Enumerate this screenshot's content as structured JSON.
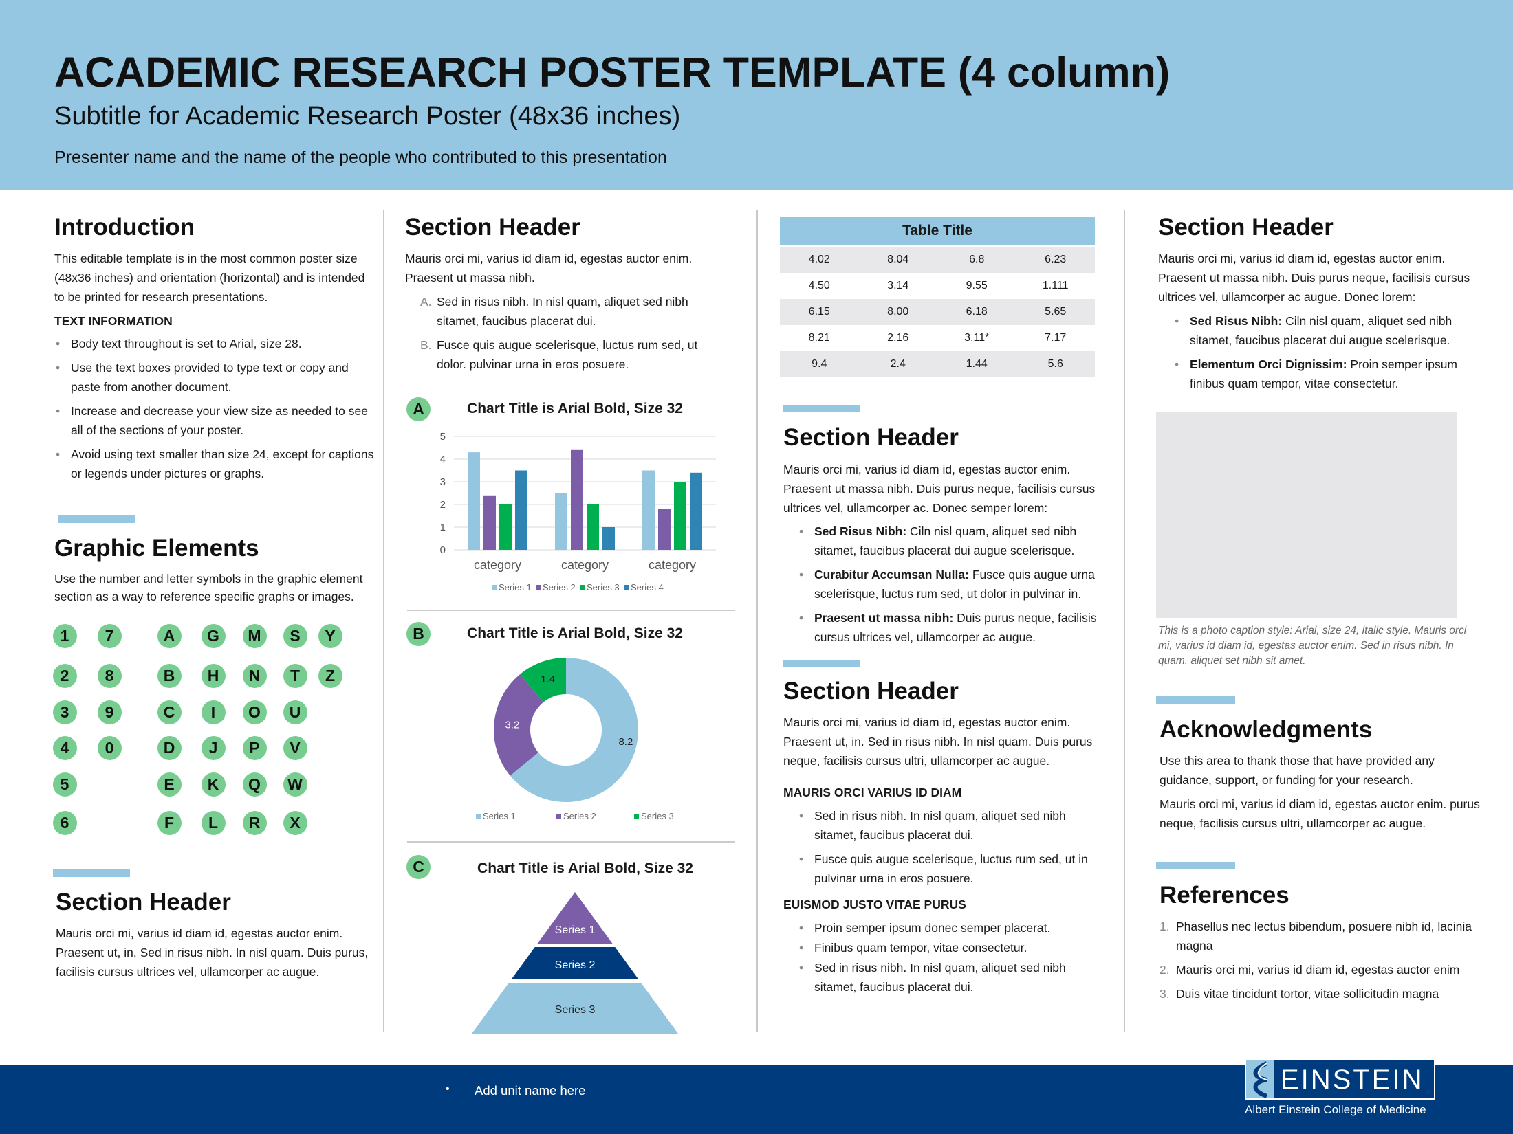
{
  "header": {
    "title": "ACADEMIC RESEARCH POSTER TEMPLATE (4 column)",
    "subtitle": "Subtitle for Academic Research Poster (48x36 inches)",
    "presenters": "Presenter name and the name of the people who contributed to this presentation"
  },
  "col1": {
    "intro_title": "Introduction",
    "intro_text": "This editable template is in the most common poster size (48x36 inches) and orientation (horizontal) and is intended to be printed for research presentations.",
    "text_info_title": "TEXT INFORMATION",
    "bullets": [
      "Body text throughout is set to Arial, size 28.",
      "Use the text boxes provided to type text or copy and paste from another document.",
      "Increase and decrease your view size as needed to see all of the sections of your poster.",
      "Avoid using text smaller than size 24, except for captions or legends under pictures or graphs."
    ],
    "graphic_title": "Graphic Elements",
    "graphic_text": "Use the number and letter symbols in the graphic element section as a way to reference specific graphs or images.",
    "symbols": [
      [
        "1",
        "7",
        "A",
        "G",
        "M",
        "S",
        "Y"
      ],
      [
        "2",
        "8",
        "B",
        "H",
        "N",
        "T",
        "Z"
      ],
      [
        "3",
        "9",
        "C",
        "I",
        "O",
        "U",
        ""
      ],
      [
        "4",
        "0",
        "D",
        "J",
        "P",
        "V",
        ""
      ],
      [
        "5",
        "",
        "E",
        "K",
        "Q",
        "W",
        ""
      ],
      [
        "6",
        "",
        "F",
        "L",
        "R",
        "X",
        ""
      ]
    ],
    "section_title": "Section Header",
    "section_text": "Mauris orci mi, varius id diam id, egestas auctor enim. Praesent ut, in. Sed in risus nibh. In nisl quam. Duis purus, facilisis cursus ultrices vel, ullamcorper ac augue."
  },
  "col2": {
    "section_title": "Section Header",
    "section_text": "Mauris orci mi, varius id diam id, egestas auctor enim. Praesent ut massa nibh.",
    "list": [
      {
        "marker": "A.",
        "text": "Sed in risus nibh. In nisl quam, aliquet sed nibh sitamet, faucibus placerat dui."
      },
      {
        "marker": "B.",
        "text": "Fusce quis augue scelerisque, luctus rum sed, ut dolor. pulvinar urna in eros posuere."
      }
    ],
    "badges": [
      "A",
      "B",
      "C"
    ]
  },
  "chart_data": [
    {
      "type": "bar",
      "title": "Chart Title is Arial Bold, Size 32",
      "categories": [
        "category",
        "category",
        "category"
      ],
      "ylim": [
        0,
        5
      ],
      "yticks": [
        "0",
        "1",
        "2",
        "3",
        "4",
        "5"
      ],
      "grid": true,
      "legend": "bottom",
      "series": [
        {
          "name": "Series 1",
          "values": [
            4.3,
            2.5,
            3.5
          ],
          "color": "#95c6e0"
        },
        {
          "name": "Series 2",
          "values": [
            2.4,
            4.4,
            1.8
          ],
          "color": "#7b5ea7"
        },
        {
          "name": "Series 3",
          "values": [
            2,
            2,
            3
          ],
          "color": "#00b050"
        },
        {
          "name": "Series 4",
          "values": [
            3.5,
            1,
            3.4
          ],
          "color": "#2e84b2"
        }
      ]
    },
    {
      "type": "pie",
      "donut": true,
      "title": "Chart Title is Arial Bold, Size 32",
      "legend": "bottom",
      "slices": [
        {
          "name": "Series 1",
          "value": 8.2,
          "label": "8.2",
          "color": "#95c6e0"
        },
        {
          "name": "Series 2",
          "value": 3.2,
          "label": "3.2",
          "color": "#7b5ea7"
        },
        {
          "name": "Series 3",
          "value": 1.4,
          "label": "1.4",
          "color": "#00b050"
        }
      ]
    },
    {
      "type": "pyramid",
      "title": "Chart Title is Arial Bold, Size 32",
      "tiers": [
        {
          "name": "Series 1",
          "color": "#7b5ea7"
        },
        {
          "name": "Series 2",
          "color": "#003b7d"
        },
        {
          "name": "Series 3",
          "color": "#95c6e0"
        }
      ]
    }
  ],
  "col3": {
    "table": {
      "title": "Table Title",
      "rows": [
        [
          "4.02",
          "8.04",
          "6.8",
          "6.23"
        ],
        [
          "4.50",
          "3.14",
          "9.55",
          "1.111"
        ],
        [
          "6.15",
          "8.00",
          "6.18",
          "5.65"
        ],
        [
          "8.21",
          "2.16",
          "3.11*",
          "7.17"
        ],
        [
          "9.4",
          "2.4",
          "1.44",
          "5.6"
        ]
      ]
    },
    "s1_title": "Section Header",
    "s1_text": "Mauris orci mi, varius id diam id, egestas auctor enim. Praesent ut massa nibh. Duis purus neque, facilisis cursus ultrices vel, ullamcorper ac. Donec semper lorem:",
    "s1_bullets": [
      {
        "lead": "Sed Risus Nibh:",
        "text": " Ciln nisl quam, aliquet sed nibh sitamet, faucibus placerat dui augue scelerisque."
      },
      {
        "lead": "Curabitur Accumsan Nulla:",
        "text": " Fusce quis augue urna scelerisque, luctus rum sed, ut dolor in pulvinar in."
      },
      {
        "lead": "Praesent ut massa nibh:",
        "text": " Duis purus neque, facilisis cursus ultrices vel, ullamcorper ac augue."
      }
    ],
    "s2_title": "Section Header",
    "s2_text": "Mauris orci mi, varius id diam id, egestas auctor enim. Praesent ut, in. Sed in risus nibh. In nisl quam. Duis purus neque, facilisis cursus ultri, ullamcorper ac augue.",
    "sub1": "MAURIS ORCI VARIUS ID DIAM",
    "sub1_bullets": [
      "Sed in risus nibh. In nisl quam, aliquet sed nibh sitamet, faucibus placerat dui.",
      "Fusce quis augue scelerisque, luctus rum sed, ut in pulvinar urna in eros posuere."
    ],
    "sub2": "EUISMOD JUSTO VITAE PURUS",
    "sub2_bullets": [
      "Proin semper ipsum donec semper placerat.",
      "Finibus quam tempor, vitae consectetur.",
      "Sed in risus nibh. In nisl quam, aliquet sed nibh sitamet, faucibus placerat dui."
    ]
  },
  "col4": {
    "section_title": "Section Header",
    "section_text": "Mauris orci mi, varius id diam id, egestas auctor enim. Praesent ut massa nibh. Duis purus neque, facilisis cursus ultrices vel, ullamcorper ac augue. Donec lorem:",
    "bullets": [
      {
        "lead": "Sed Risus Nibh:",
        "text": " Ciln nisl quam, aliquet sed nibh sitamet, faucibus placerat dui augue scelerisque."
      },
      {
        "lead": "Elementum Orci Dignissim:",
        "text": " Proin semper ipsum finibus quam tempor, vitae consectetur."
      }
    ],
    "caption": "This is a photo caption style: Arial, size 24, italic style. Mauris orci mi, varius id diam id, egestas auctor enim. Sed in risus nibh. In quam, aliquet set nibh sit amet.",
    "ack_title": "Acknowledgments",
    "ack_text1": "Use this area to thank those that have provided any guidance, support, or funding for your research.",
    "ack_text2": "Mauris orci mi, varius id diam id, egestas auctor enim. purus neque, facilisis cursus ultri, ullamcorper ac augue.",
    "ref_title": "References",
    "refs": [
      {
        "n": "1.",
        "text": "Phasellus nec lectus bibendum, posuere nibh id, lacinia magna"
      },
      {
        "n": "2.",
        "text": "Mauris orci mi, varius id diam id, egestas auctor enim"
      },
      {
        "n": "3.",
        "text": "Duis vitae tincidunt tortor, vitae sollicitudin magna"
      }
    ]
  },
  "footer": {
    "bullet": "•",
    "unit": "Add unit name here",
    "logo_word": "EINSTEIN",
    "logo_sub": "Albert Einstein College of Medicine"
  },
  "colors": {
    "header_bg": "#95c6e2",
    "footer_bg": "#003b7d",
    "badge": "#77cc8f",
    "accent_bar": "#95c6e2",
    "table_stripe": "#e8e7ea"
  }
}
